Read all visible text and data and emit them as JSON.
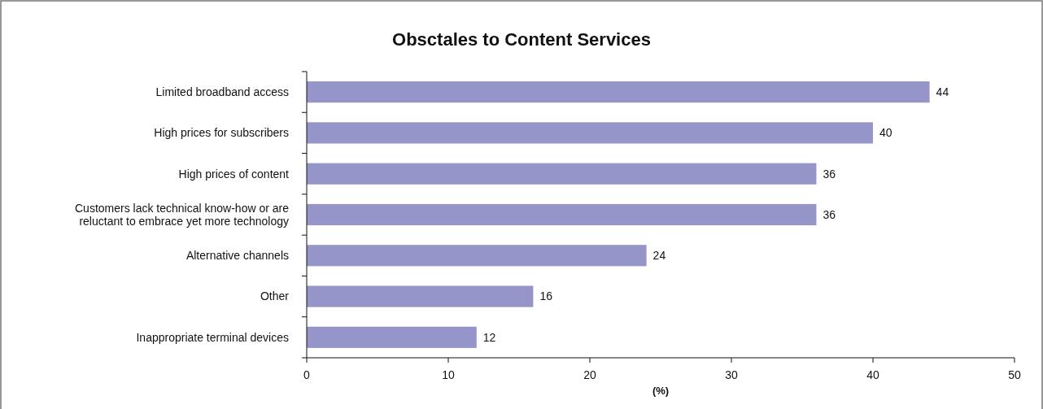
{
  "chart_data": {
    "type": "bar",
    "orientation": "horizontal",
    "title": "Obsctales to Content Services",
    "xlabel": "(%)",
    "categories": [
      "Limited broadband access",
      "High prices for subscribers",
      "High prices of content",
      "Customers lack technical know-how or are\nreluctant to embrace yet more technology",
      "Alternative channels",
      "Other",
      "Inappropriate terminal devices"
    ],
    "values": [
      44,
      40,
      36,
      36,
      24,
      16,
      12
    ],
    "color": "#9595c9",
    "xlim": [
      0,
      50
    ],
    "xticks": [
      0,
      10,
      20,
      30,
      40,
      50
    ],
    "data_labels": true,
    "grid": false
  }
}
